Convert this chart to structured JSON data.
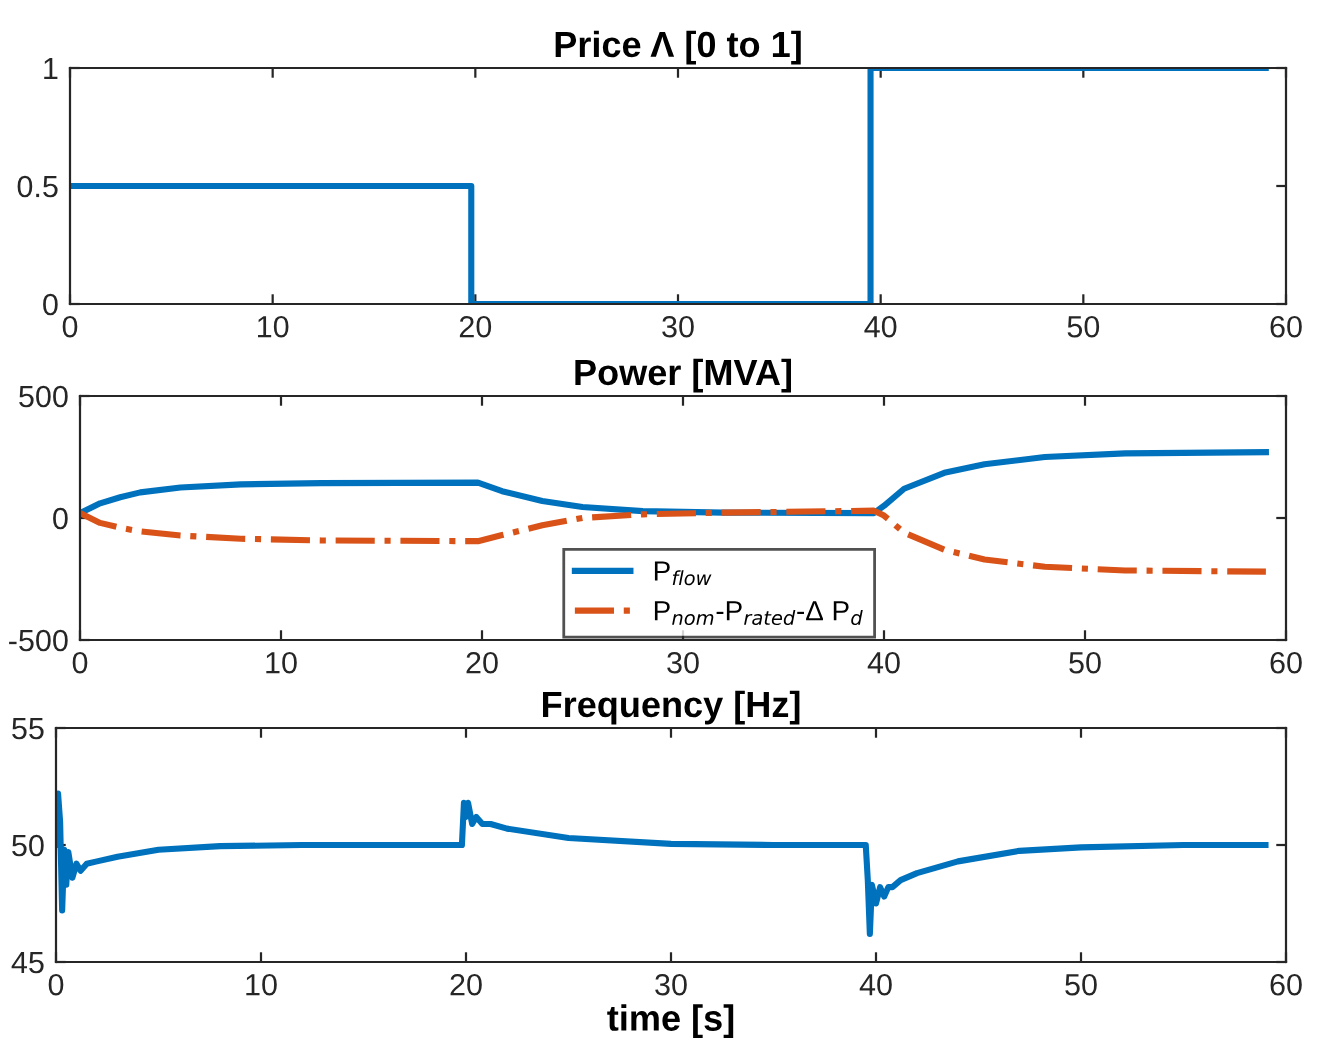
{
  "chart_data": [
    {
      "type": "line",
      "title": "Price Λ [0 to 1]",
      "xlim": [
        0,
        60
      ],
      "xticks": [
        0,
        10,
        20,
        30,
        40,
        50,
        60
      ],
      "ylim": [
        0,
        1
      ],
      "yticks": [
        0,
        0.5,
        1
      ],
      "grid": false,
      "legend": false,
      "series": [
        {
          "color": "#0072bd",
          "x": [
            0,
            19.8,
            19.8,
            39.5,
            39.5,
            59
          ],
          "values": [
            0.5,
            0.5,
            0,
            0,
            1,
            1
          ]
        }
      ]
    },
    {
      "type": "line",
      "title": "Power [MVA]",
      "xlim": [
        0,
        60
      ],
      "xticks": [
        0,
        10,
        20,
        30,
        40,
        50,
        60
      ],
      "ylim": [
        -500,
        500
      ],
      "yticks": [
        -500,
        0,
        500
      ],
      "grid": false,
      "legend": "bottom",
      "series": [
        {
          "name": "P$_{flow}$",
          "color": "#0072bd",
          "line_style": "solid",
          "x": [
            0,
            1,
            2,
            3,
            5,
            8,
            12,
            19.8,
            21,
            23,
            25,
            28,
            32,
            39.5,
            40,
            41,
            43,
            45,
            48,
            52,
            59
          ],
          "values": [
            20,
            60,
            85,
            105,
            125,
            138,
            143,
            145,
            110,
            70,
            45,
            28,
            22,
            20,
            50,
            120,
            185,
            220,
            250,
            265,
            270
          ]
        },
        {
          "name": "P$_{nom}$-P$_{rated}$-Δ P$_{d}$",
          "color": "#d95319",
          "line_style": "dashdot",
          "x": [
            0,
            1,
            2,
            3,
            5,
            8,
            12,
            19.8,
            21,
            23,
            25,
            28,
            32,
            39.5,
            40,
            41,
            43,
            45,
            48,
            52,
            59
          ],
          "values": [
            20,
            -20,
            -40,
            -55,
            -72,
            -85,
            -92,
            -95,
            -70,
            -30,
            0,
            15,
            22,
            30,
            10,
            -60,
            -130,
            -170,
            -200,
            -215,
            -220
          ]
        }
      ]
    },
    {
      "type": "line",
      "title": "Frequency [Hz]",
      "xlabel": "time [s]",
      "xlim": [
        0,
        60
      ],
      "xticks": [
        0,
        10,
        20,
        30,
        40,
        50,
        60
      ],
      "ylim": [
        45,
        55
      ],
      "yticks": [
        45,
        50,
        55
      ],
      "grid": false,
      "legend": false,
      "series": [
        {
          "color": "#0072bd",
          "x": [
            0,
            0.1,
            0.2,
            0.3,
            0.4,
            0.5,
            0.6,
            0.8,
            1.0,
            1.2,
            1.5,
            2,
            3,
            5,
            8,
            12,
            19.8,
            19.9,
            20.0,
            20.1,
            20.3,
            20.5,
            20.8,
            21.2,
            22,
            25,
            30,
            35,
            39.5,
            39.6,
            39.7,
            39.8,
            40.0,
            40.2,
            40.4,
            40.6,
            40.8,
            41.2,
            42,
            44,
            47,
            50,
            55,
            59
          ],
          "values": [
            50,
            52.2,
            51,
            47.2,
            49.8,
            48.3,
            49.7,
            48.6,
            49.2,
            48.9,
            49.2,
            49.3,
            49.5,
            49.8,
            49.95,
            50,
            50,
            51.8,
            51.2,
            51.8,
            50.9,
            51.2,
            50.9,
            50.9,
            50.7,
            50.3,
            50.05,
            50,
            50,
            48.5,
            46.2,
            48.3,
            47.5,
            48.2,
            47.8,
            48.2,
            48.2,
            48.5,
            48.8,
            49.3,
            49.75,
            49.9,
            50,
            50
          ]
        }
      ]
    }
  ]
}
